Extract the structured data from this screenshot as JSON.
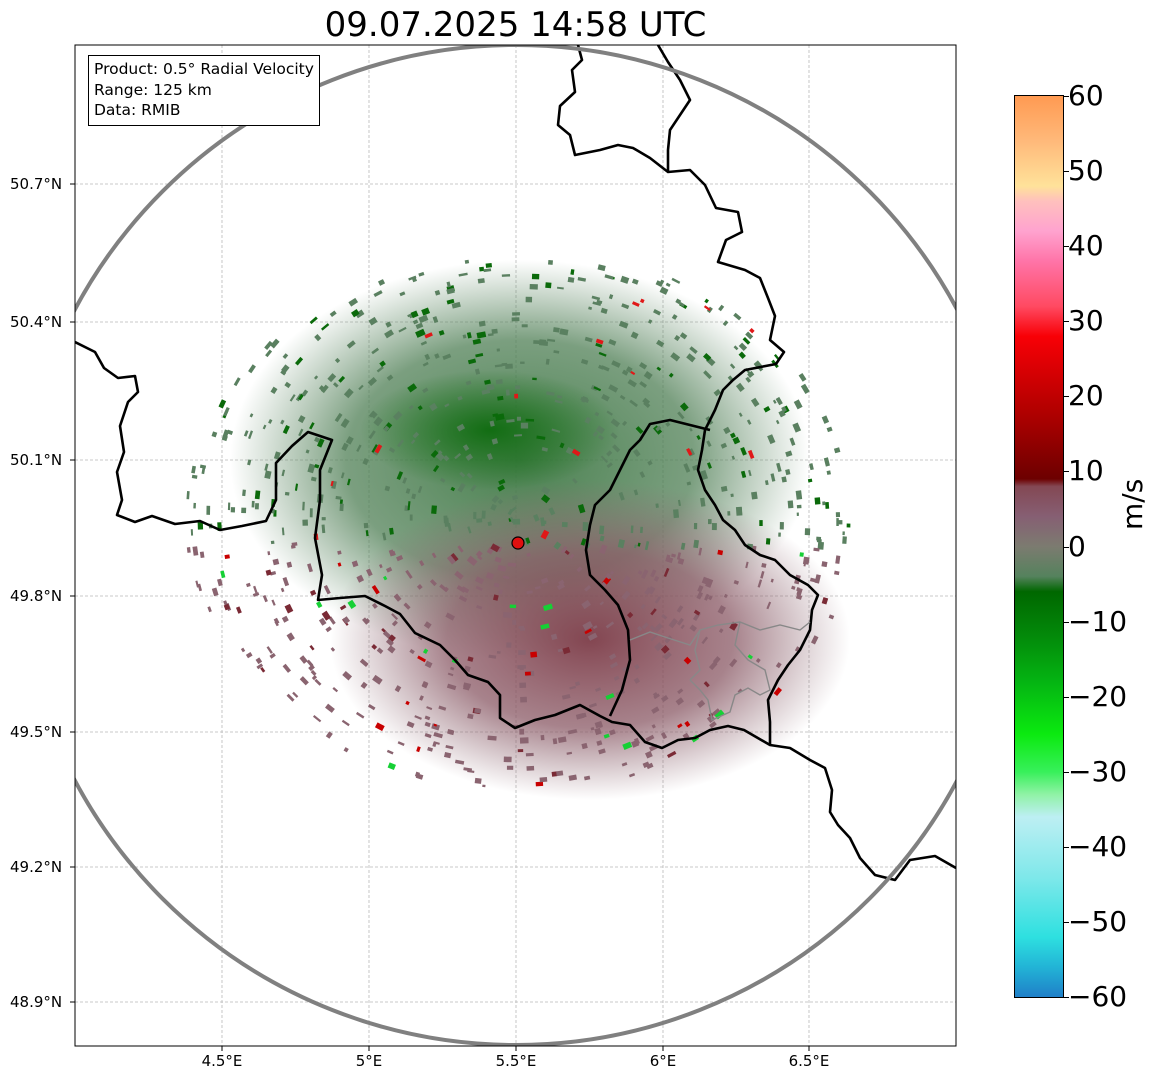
{
  "title": "09.07.2025 14:58 UTC",
  "info": {
    "product": "Product: 0.5° Radial Velocity",
    "range": "Range: 125 km",
    "data": "Data: RMIB"
  },
  "map": {
    "lat_ticks": [
      "50.7°N",
      "50.4°N",
      "50.1°N",
      "49.8°N",
      "49.5°N",
      "49.2°N",
      "48.9°N"
    ],
    "lon_ticks": [
      "4.5°E",
      "5°E",
      "5.5°E",
      "6°E",
      "6.5°E"
    ],
    "radar_site": {
      "lat": 49.91,
      "lon": 5.5
    },
    "range_ring_color": "#808080",
    "border_color": "#000000",
    "grid": "on, dashed, light grey"
  },
  "colorbar": {
    "label": "m/s",
    "min": -60,
    "max": 60,
    "ticks": [
      "60",
      "50",
      "40",
      "30",
      "20",
      "10",
      "0",
      "−10",
      "−20",
      "−30",
      "−40",
      "−50",
      "−60"
    ],
    "stops": [
      {
        "v": -60,
        "c": "#1f7fc8"
      },
      {
        "v": -56,
        "c": "#22b4d6"
      },
      {
        "v": -52,
        "c": "#2ee0e0"
      },
      {
        "v": -44,
        "c": "#7fe8ea"
      },
      {
        "v": -36,
        "c": "#bdeff3"
      },
      {
        "v": -33,
        "c": "#8ff2a5"
      },
      {
        "v": -30,
        "c": "#37f05a"
      },
      {
        "v": -25,
        "c": "#0bea10"
      },
      {
        "v": -18,
        "c": "#04b412"
      },
      {
        "v": -12,
        "c": "#038a0a"
      },
      {
        "v": -6,
        "c": "#006700"
      },
      {
        "v": -4,
        "c": "#55825d"
      },
      {
        "v": 0,
        "c": "#7c7b70"
      },
      {
        "v": 4,
        "c": "#865f73"
      },
      {
        "v": 8,
        "c": "#844854"
      },
      {
        "v": 9,
        "c": "#6d0000"
      },
      {
        "v": 18,
        "c": "#b10000"
      },
      {
        "v": 28,
        "c": "#f80006"
      },
      {
        "v": 32,
        "c": "#ff4a62"
      },
      {
        "v": 38,
        "c": "#ff74a8"
      },
      {
        "v": 42,
        "c": "#ffa3cf"
      },
      {
        "v": 46,
        "c": "#ffc0bd"
      },
      {
        "v": 48,
        "c": "#ffe29a"
      },
      {
        "v": 54,
        "c": "#ffb97a"
      },
      {
        "v": 60,
        "c": "#ff9a52"
      }
    ]
  }
}
